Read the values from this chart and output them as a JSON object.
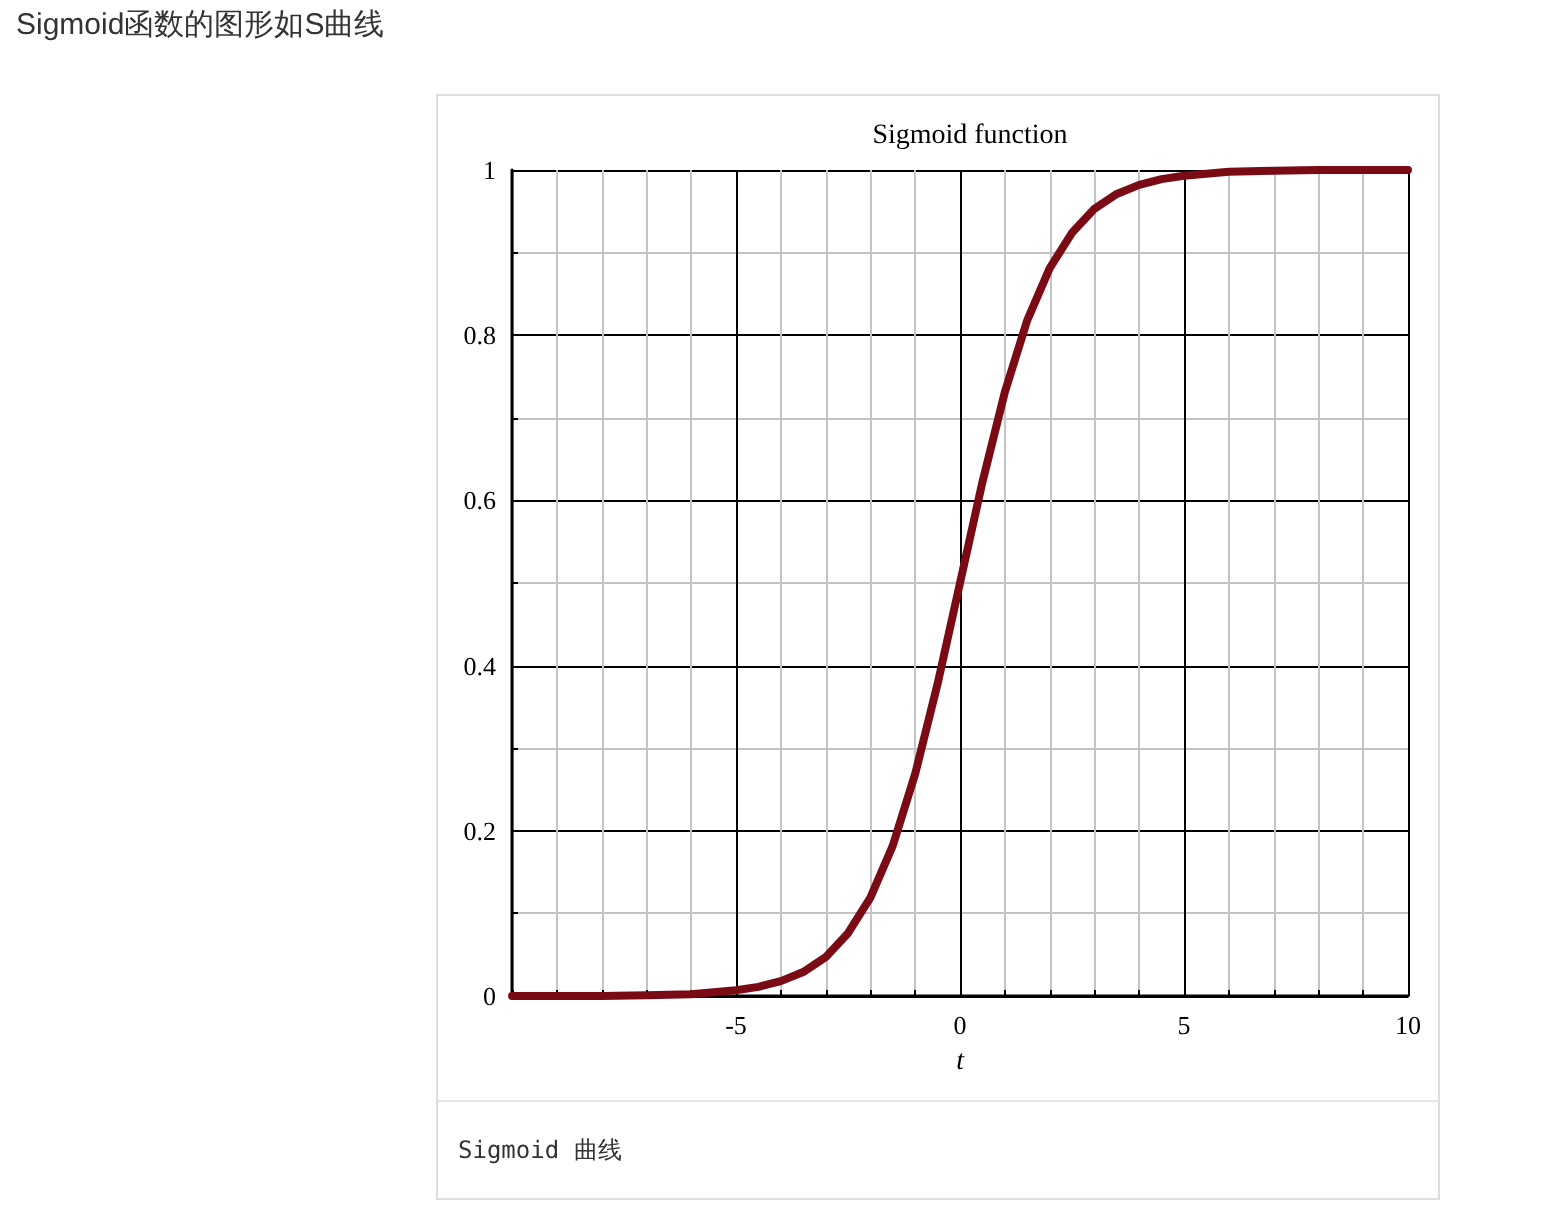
{
  "chart_data": {
    "type": "line",
    "title": "Sigmoid function",
    "xlabel": "t",
    "annotations": [
      "Sigmoid函数的图形如S曲线",
      "Sigmoid 曲线"
    ],
    "x": [
      -10,
      -9,
      -8,
      -7,
      -6,
      -5,
      -4.5,
      -4,
      -3.5,
      -3,
      -2.5,
      -2,
      -1.5,
      -1,
      -0.5,
      0,
      0.5,
      1,
      1.5,
      2,
      2.5,
      3,
      3.5,
      4,
      4.5,
      5,
      6,
      7,
      8,
      9,
      10
    ],
    "series": [
      {
        "color": "#7a0a14",
        "values": [
          0.0,
          0.0,
          0.0,
          0.001,
          0.002,
          0.007,
          0.011,
          0.018,
          0.029,
          0.047,
          0.076,
          0.119,
          0.182,
          0.269,
          0.378,
          0.5,
          0.622,
          0.731,
          0.818,
          0.881,
          0.924,
          0.953,
          0.971,
          0.982,
          0.989,
          0.993,
          0.998,
          0.999,
          1.0,
          1.0,
          1.0
        ]
      }
    ],
    "xlim": [
      -10,
      10
    ],
    "xticks": [
      {
        "value": -10,
        "label": null
      },
      {
        "value": -9,
        "label": null
      },
      {
        "value": -8,
        "label": null
      },
      {
        "value": -7,
        "label": null
      },
      {
        "value": -6,
        "label": null
      },
      -5,
      {
        "value": -4,
        "label": null
      },
      {
        "value": -3,
        "label": null
      },
      {
        "value": -2,
        "label": null
      },
      {
        "value": -1,
        "label": null
      },
      0,
      {
        "value": 1,
        "label": null
      },
      {
        "value": 2,
        "label": null
      },
      {
        "value": 3,
        "label": null
      },
      {
        "value": 4,
        "label": null
      },
      5,
      {
        "value": 6,
        "label": null
      },
      {
        "value": 7,
        "label": null
      },
      {
        "value": 8,
        "label": null
      },
      {
        "value": 9,
        "label": null
      },
      10
    ],
    "ylim": [
      0,
      1
    ],
    "yticks": [
      0,
      {
        "value": 0.1,
        "label": null
      },
      0.2,
      {
        "value": 0.3,
        "label": null
      },
      0.4,
      {
        "value": 0.5,
        "label": null
      },
      0.6,
      {
        "value": 0.7,
        "label": null
      },
      0.8,
      {
        "value": 0.9,
        "label": null
      },
      1
    ],
    "grid": true,
    "marker": "none",
    "line_style": "solid"
  }
}
